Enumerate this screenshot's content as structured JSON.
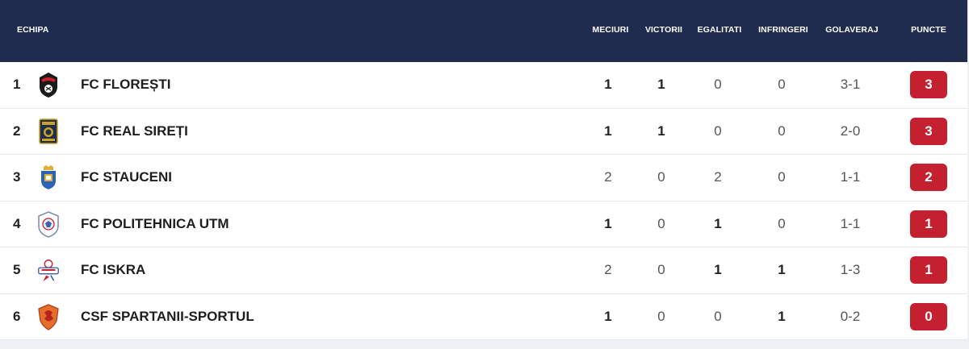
{
  "header": {
    "team": "ECHIPA",
    "played": "MECIURI",
    "won": "VICTORII",
    "drawn": "EGALITATI",
    "lost": "INFRINGERI",
    "goals": "GOLAVERAJ",
    "points": "PUNCTE"
  },
  "colors": {
    "header_bg": "#1f2c4e",
    "points_badge": "#c5202f"
  },
  "rows": [
    {
      "rank": "1",
      "team": "FC FLOREȘTI",
      "crest": "floresti-crest-icon",
      "played": "1",
      "won": "1",
      "drawn": "0",
      "lost": "0",
      "goals": "3-1",
      "points": "3"
    },
    {
      "rank": "2",
      "team": "FC REAL SIREȚI",
      "crest": "real-sireti-crest-icon",
      "played": "1",
      "won": "1",
      "drawn": "0",
      "lost": "0",
      "goals": "2-0",
      "points": "3"
    },
    {
      "rank": "3",
      "team": "FC STAUCENI",
      "crest": "stauceni-crest-icon",
      "played": "2",
      "won": "0",
      "drawn": "2",
      "lost": "0",
      "goals": "1-1",
      "points": "2"
    },
    {
      "rank": "4",
      "team": "FC POLITEHNICA UTM",
      "crest": "politehnica-utm-crest-icon",
      "played": "1",
      "won": "0",
      "drawn": "1",
      "lost": "0",
      "goals": "1-1",
      "points": "1"
    },
    {
      "rank": "5",
      "team": "FC ISKRA",
      "crest": "iskra-crest-icon",
      "played": "2",
      "won": "0",
      "drawn": "1",
      "lost": "1",
      "goals": "1-3",
      "points": "1"
    },
    {
      "rank": "6",
      "team": "CSF SPARTANII-SPORTUL",
      "crest": "spartanii-sportul-crest-icon",
      "played": "1",
      "won": "0",
      "drawn": "0",
      "lost": "1",
      "goals": "0-2",
      "points": "0"
    }
  ]
}
